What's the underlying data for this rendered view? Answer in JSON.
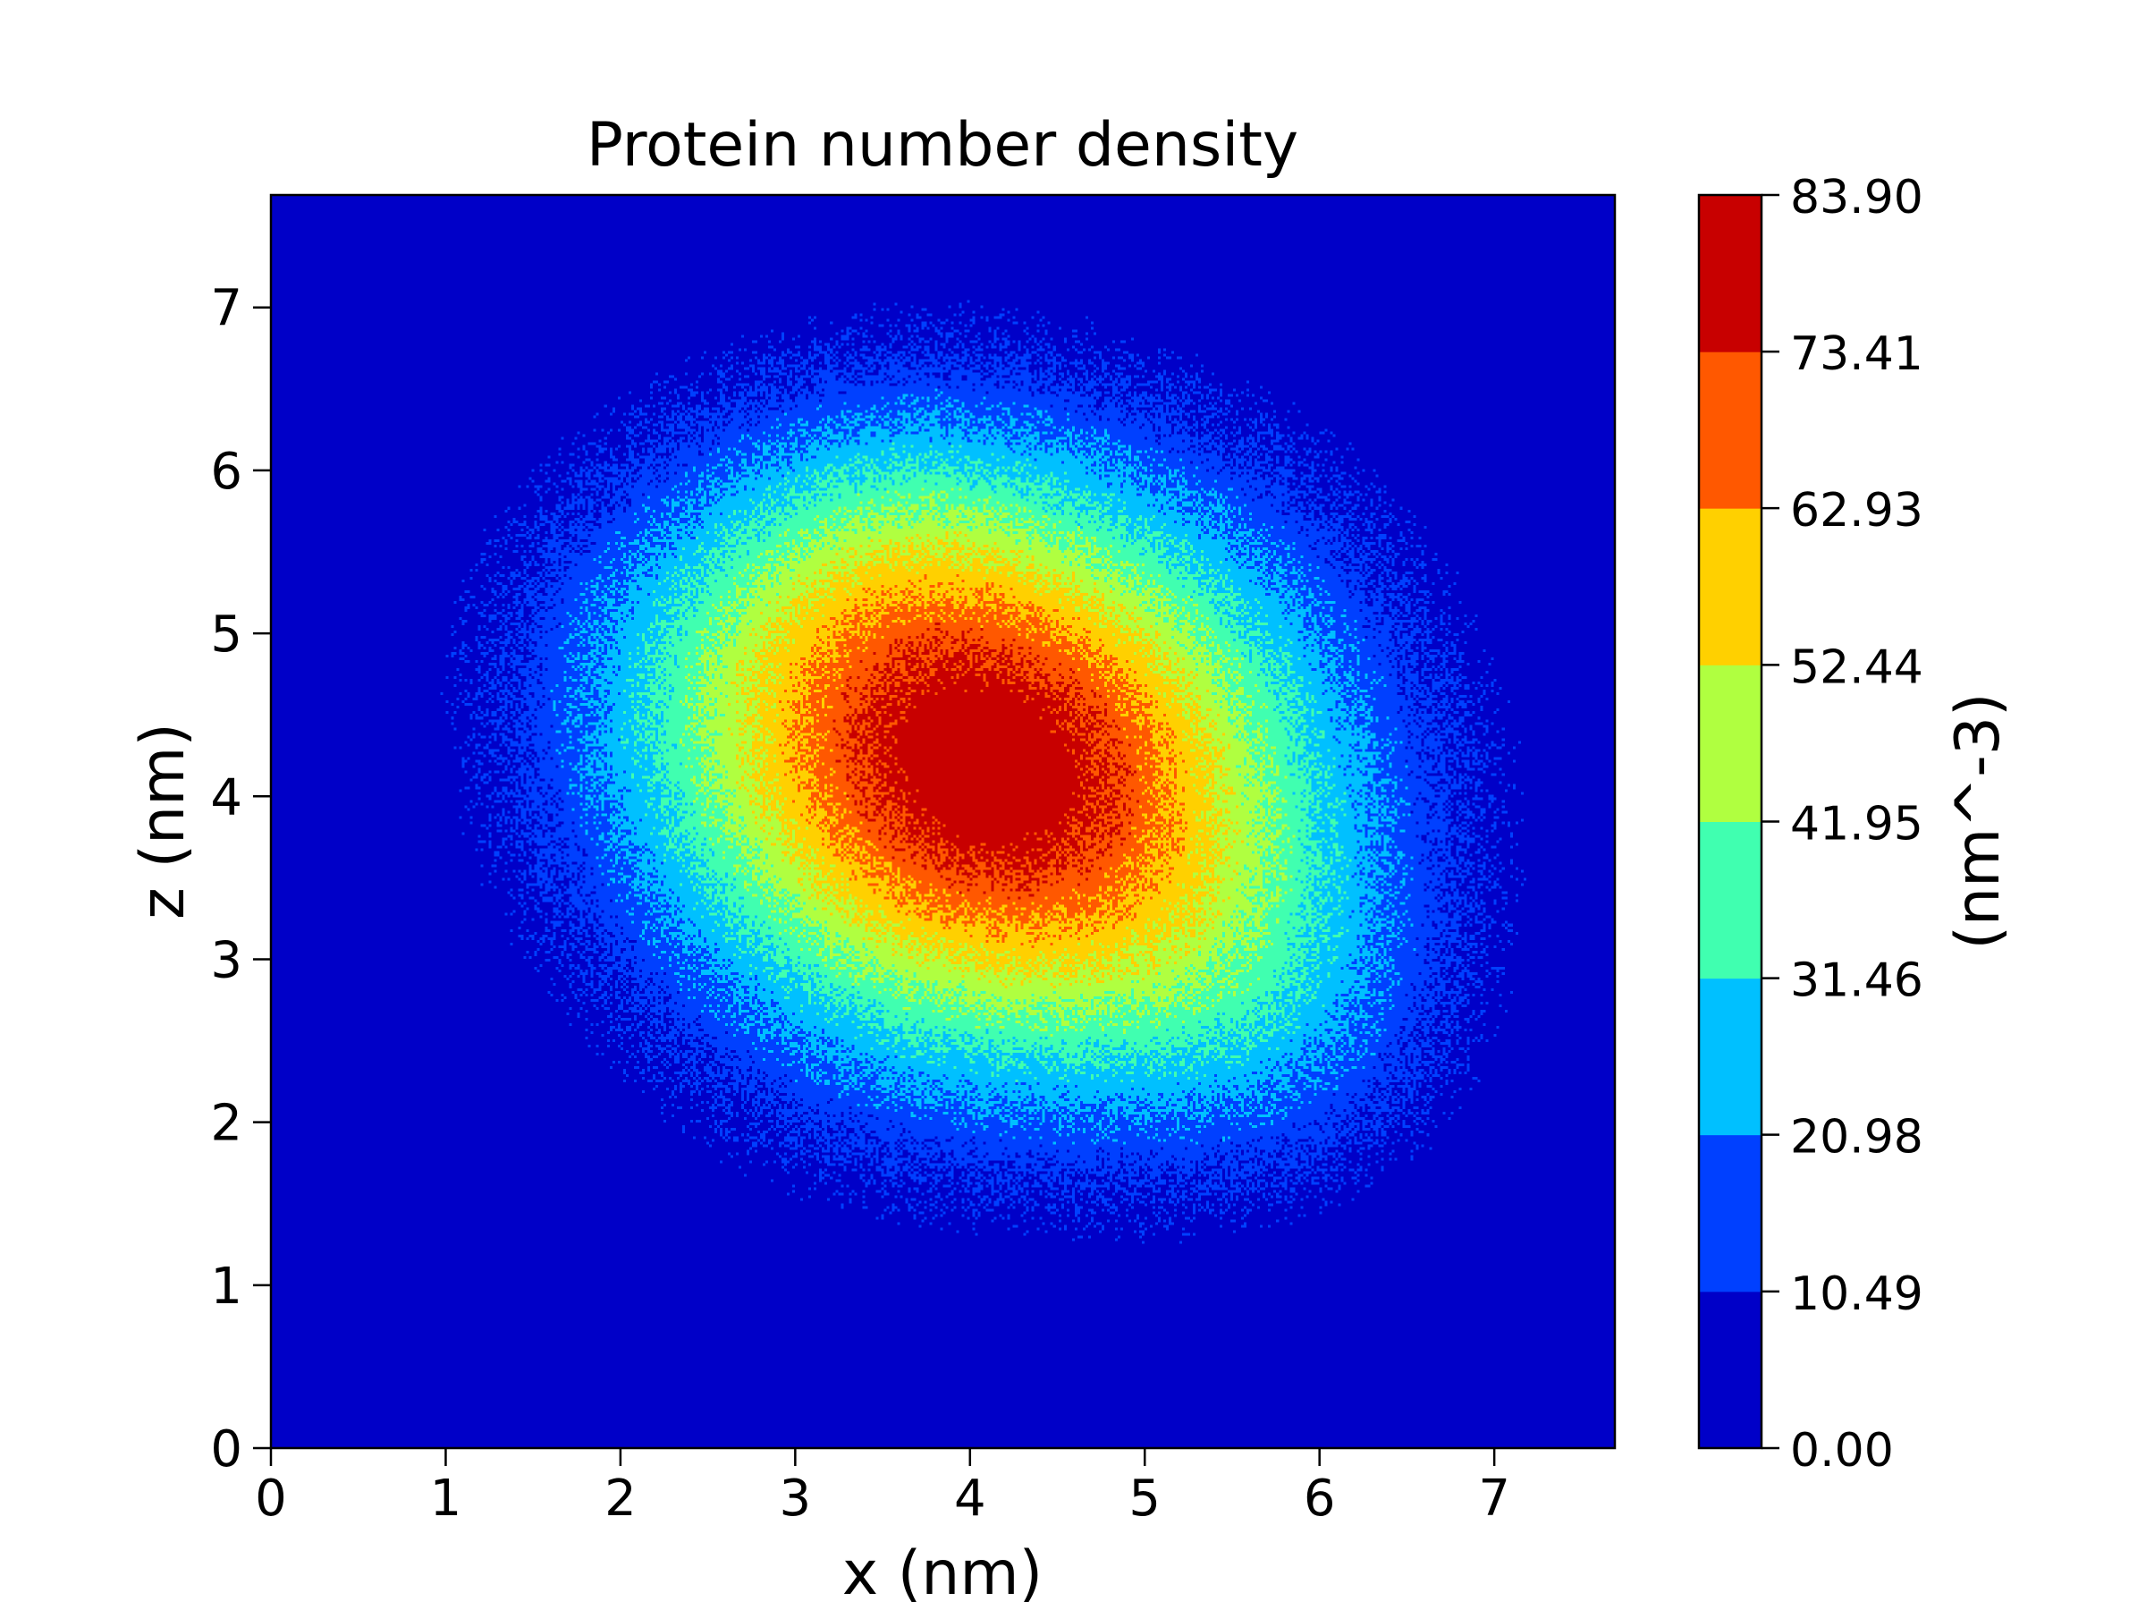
{
  "chart_data": {
    "type": "heatmap",
    "style": "filled contour",
    "title": "Protein number density",
    "xlabel": "x (nm)",
    "ylabel": "z (nm)",
    "colorbar_label": "(nm^-3)",
    "xlim": [
      0,
      7.69
    ],
    "ylim": [
      0,
      7.69
    ],
    "xticks": [
      "0",
      "1",
      "2",
      "3",
      "4",
      "5",
      "6",
      "7"
    ],
    "yticks": [
      "0",
      "1",
      "2",
      "3",
      "4",
      "5",
      "6",
      "7"
    ],
    "levels": [
      0.0,
      10.49,
      20.98,
      31.46,
      41.95,
      52.44,
      62.93,
      73.41,
      83.9
    ],
    "level_labels": [
      "0.00",
      "10.49",
      "20.98",
      "31.46",
      "41.95",
      "52.44",
      "62.93",
      "73.41",
      "83.90"
    ],
    "level_colors": [
      "#0000c8",
      "#0040ff",
      "#00c0ff",
      "#40ffb0",
      "#b0ff40",
      "#ffd000",
      "#ff5800",
      "#c80000"
    ],
    "density_peak": {
      "x": 4.2,
      "z": 4.1,
      "value": 80
    },
    "density_extent": {
      "x": [
        1.0,
        6.8
      ],
      "z": [
        1.3,
        6.7
      ]
    }
  }
}
